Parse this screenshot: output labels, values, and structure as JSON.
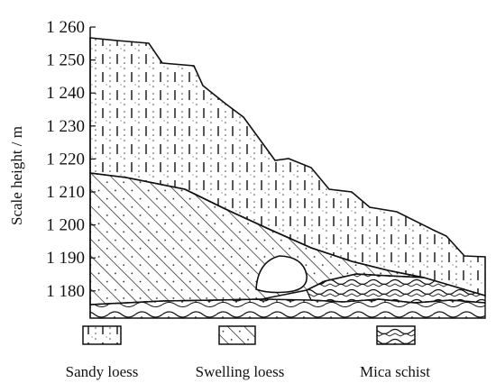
{
  "figure": {
    "y_axis_label": "Scale height / m",
    "y_ticks": [
      "1 260",
      "1 250",
      "1 240",
      "1 230",
      "1 220",
      "1 210",
      "1 200",
      "1 190",
      "1 180"
    ],
    "y_tick_values": [
      1260,
      1250,
      1240,
      1230,
      1220,
      1210,
      1200,
      1190,
      1180
    ],
    "legend": [
      {
        "label": "Sandy loess",
        "pattern": "dashed-vertical-dotted"
      },
      {
        "label": "Swelling loess",
        "pattern": "diagonal-hatch"
      },
      {
        "label": "Mica schist",
        "pattern": "wavy-chevron"
      }
    ]
  }
}
